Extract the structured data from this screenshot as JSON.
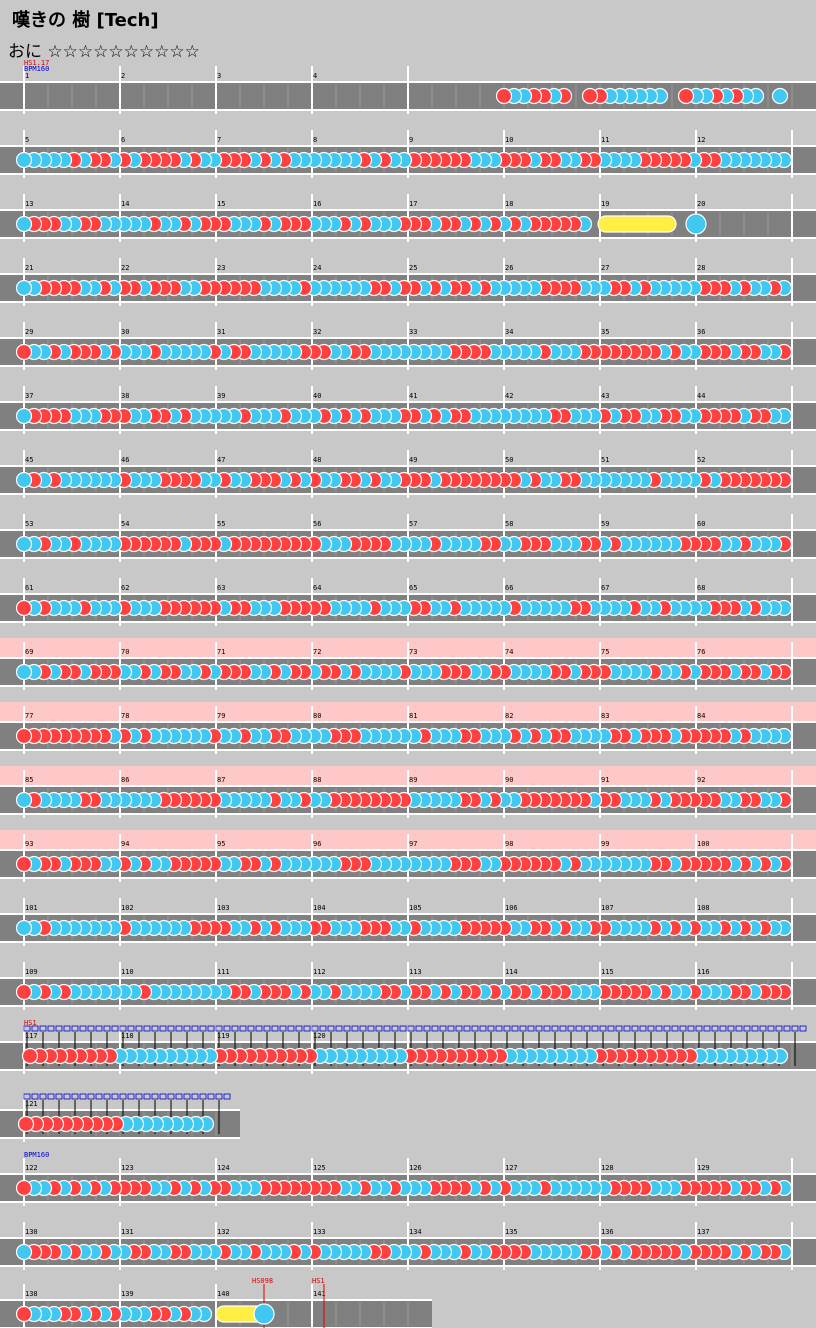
{
  "song": {
    "title": "嘆きの 樹 [Tech]",
    "course": "おに",
    "stars": "☆☆☆☆☆☆☆☆☆☆"
  },
  "colors": {
    "background": "#c8c8c8",
    "lane": "#808080",
    "lane_border": "#ffffff",
    "gogo_band": "#ffc8c8",
    "don": "#ff4040",
    "ka": "#40c8f0",
    "drumroll": "#ffee44"
  },
  "rows": [
    {
      "measures": [
        1,
        2,
        3,
        4
      ],
      "hs": "HS1.17",
      "bpm": "BPM160",
      "pattern": "intro",
      "gogo": false
    },
    {
      "measures": [
        5,
        6,
        7,
        8,
        9,
        10,
        11,
        12
      ],
      "pattern": "dense",
      "gogo": false
    },
    {
      "measures": [
        13,
        14,
        15,
        16,
        17,
        18,
        19,
        20
      ],
      "pattern": "roll",
      "gogo": false
    },
    {
      "measures": [
        21,
        22,
        23,
        24,
        25,
        26,
        27,
        28
      ],
      "pattern": "dense",
      "gogo": false
    },
    {
      "measures": [
        29,
        30,
        31,
        32,
        33,
        34,
        35,
        36
      ],
      "pattern": "dense",
      "gogo": false
    },
    {
      "measures": [
        37,
        38,
        39,
        40,
        41,
        42,
        43,
        44
      ],
      "pattern": "dense",
      "gogo": false
    },
    {
      "measures": [
        45,
        46,
        47,
        48,
        49,
        50,
        51,
        52
      ],
      "pattern": "dense",
      "gogo": false
    },
    {
      "measures": [
        53,
        54,
        55,
        56,
        57,
        58,
        59,
        60
      ],
      "pattern": "dense",
      "gogo": false
    },
    {
      "measures": [
        61,
        62,
        63,
        64,
        65,
        66,
        67,
        68
      ],
      "pattern": "dense",
      "gogo": false
    },
    {
      "measures": [
        69,
        70,
        71,
        72,
        73,
        74,
        75,
        76
      ],
      "pattern": "dense",
      "gogo": true
    },
    {
      "measures": [
        77,
        78,
        79,
        80,
        81,
        82,
        83,
        84
      ],
      "pattern": "dense",
      "gogo": true
    },
    {
      "measures": [
        85,
        86,
        87,
        88,
        89,
        90,
        91,
        92
      ],
      "pattern": "dense",
      "gogo": true
    },
    {
      "measures": [
        93,
        94,
        95,
        96,
        97,
        98,
        99,
        100
      ],
      "pattern": "dense",
      "gogo": true
    },
    {
      "measures": [
        101,
        102,
        103,
        104,
        105,
        106,
        107,
        108
      ],
      "pattern": "dense",
      "gogo": false
    },
    {
      "measures": [
        109,
        110,
        111,
        112,
        113,
        114,
        115,
        116
      ],
      "pattern": "dense",
      "gogo": false
    },
    {
      "measures": [
        117,
        118,
        119,
        120
      ],
      "hs": "HS1",
      "bpm_changes": true,
      "pattern": "block",
      "gogo": false
    },
    {
      "measures": [
        121
      ],
      "bpm_changes": true,
      "pattern": "block",
      "gogo": false
    },
    {
      "measures": [
        122,
        123,
        124,
        125,
        126,
        127,
        128,
        129
      ],
      "bpm": "BPM160",
      "pattern": "dense",
      "gogo": false
    },
    {
      "measures": [
        130,
        131,
        132,
        133,
        134,
        135,
        136,
        137
      ],
      "pattern": "dense",
      "gogo": false
    },
    {
      "measures": [
        138,
        139,
        140,
        141
      ],
      "hs_marks": [
        "HS098",
        "HS1"
      ],
      "pattern": "ending",
      "gogo": false
    }
  ]
}
